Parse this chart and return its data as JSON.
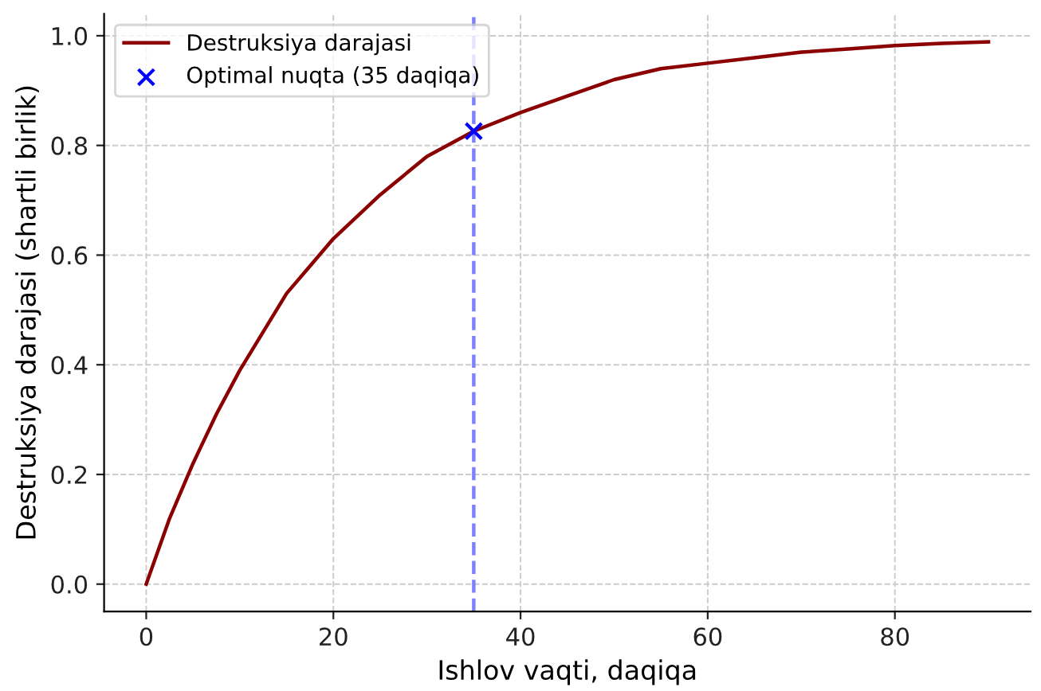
{
  "chart_data": {
    "type": "line",
    "xlabel": "Ishlov vaqti, daqiqa",
    "ylabel": "Destruksiya darajasi (shartli birlik)",
    "xlim": [
      -4.5,
      94.5
    ],
    "ylim": [
      -0.05,
      1.04
    ],
    "xticks": [
      0,
      20,
      40,
      60,
      80
    ],
    "yticks": [
      {
        "value": 0,
        "label": "0.0"
      },
      0.2,
      0.4,
      0.6,
      0.8,
      {
        "value": 1,
        "label": "1.0"
      }
    ],
    "grid": true,
    "legend": "top left",
    "series": [
      {
        "name": "Destruksiya darajasi",
        "color": "#8b0000",
        "line_style": "solid",
        "marker": "none",
        "x": [
          0,
          2.5,
          5,
          7.5,
          10,
          12.5,
          15,
          17.5,
          20,
          25,
          30,
          35,
          40,
          45,
          50,
          55,
          60,
          65,
          70,
          75,
          80,
          85,
          90
        ],
        "values": [
          0,
          0.12,
          0.22,
          0.31,
          0.39,
          0.46,
          0.53,
          0.58,
          0.63,
          0.71,
          0.78,
          0.826,
          0.86,
          0.89,
          0.92,
          0.94,
          0.95,
          0.96,
          0.97,
          0.976,
          0.982,
          0.986,
          0.989
        ]
      },
      {
        "name": "Optimal nuqta (35 daqiqa)",
        "type": "scatter",
        "color": "#0000ff",
        "marker": "cross",
        "x": [
          35
        ],
        "values": [
          0.826
        ]
      }
    ],
    "ref_lines": [
      {
        "axis": "x",
        "value": 35,
        "label": null,
        "color": "#7f7fff",
        "line_style": "dashed"
      }
    ]
  }
}
